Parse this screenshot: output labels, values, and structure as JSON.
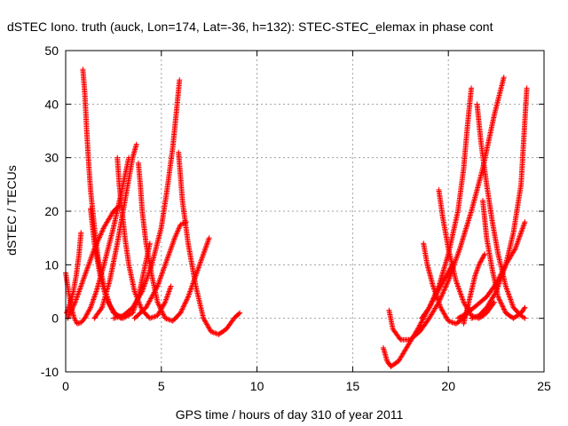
{
  "chart_data": {
    "type": "scatter",
    "title": "dSTEC Iono. truth (auck, Lon=174, Lat=-36, h=132): STEC-STEC_elemax in phase cont",
    "xlabel": "GPS time / hours of day 310 of year 2011",
    "ylabel": "dSTEC  / TECUs",
    "xlim": [
      0,
      25
    ],
    "ylim": [
      -10,
      50
    ],
    "xticks": [
      0,
      5,
      10,
      15,
      20,
      25
    ],
    "yticks": [
      -10,
      0,
      10,
      20,
      30,
      40,
      50
    ],
    "xtick_labels": [
      "0",
      "5",
      "10",
      "15",
      "20",
      "25"
    ],
    "ytick_labels": [
      "-10",
      "0",
      "10",
      "20",
      "30",
      "40",
      "50"
    ],
    "grid": true,
    "legend": "none",
    "marker": "plus",
    "color": "#ff0000",
    "series": [
      {
        "x": [
          0,
          0.15,
          0.3,
          0.45,
          0.6,
          0.8,
          1.0,
          1.3,
          1.6,
          2.0,
          2.5,
          3.0,
          3.3
        ],
        "y": [
          8.5,
          5,
          2,
          0,
          -1,
          -0.8,
          0,
          2,
          5,
          10,
          17,
          25,
          30
        ]
      },
      {
        "x": [
          0.9,
          1.0,
          1.1,
          1.2,
          1.3,
          1.5,
          1.7,
          2.0,
          2.3,
          2.6,
          2.9
        ],
        "y": [
          46.5,
          42,
          35,
          29,
          24,
          17,
          11,
          6,
          2.5,
          0.8,
          0
        ]
      },
      {
        "x": [
          0.8,
          0.7,
          0.55,
          0.4,
          0.25,
          0.1,
          0.05
        ],
        "y": [
          16,
          12,
          8,
          5,
          3,
          1.5,
          1
        ]
      },
      {
        "x": [
          1.3,
          1.5,
          1.8,
          2.1,
          2.5,
          3.0,
          3.5,
          3.8,
          4.1,
          4.4
        ],
        "y": [
          20.5,
          14,
          8,
          4,
          1,
          0,
          1,
          4,
          9,
          14
        ]
      },
      {
        "x": [
          2.7,
          2.8,
          2.95,
          3.1,
          3.3,
          3.6,
          4.0,
          4.4,
          4.8,
          5.2,
          5.5
        ],
        "y": [
          30,
          25,
          20,
          15,
          10,
          5,
          1.5,
          0,
          0.5,
          3,
          6
        ]
      },
      {
        "x": [
          1.5,
          1.9,
          2.3,
          2.7,
          3.0,
          3.3,
          3.5,
          3.7
        ],
        "y": [
          0,
          2,
          7,
          14,
          20,
          26,
          30,
          32.5
        ]
      },
      {
        "x": [
          3.8,
          3.9,
          4.0,
          4.2,
          4.5,
          4.8,
          5.2,
          5.6,
          6.0,
          6.4,
          6.8,
          7.2,
          7.5
        ],
        "y": [
          29,
          25,
          20,
          14,
          8,
          3,
          0,
          -0.5,
          1,
          4,
          8,
          12,
          15
        ]
      },
      {
        "x": [
          2.5,
          3.0,
          3.5,
          4.0,
          4.5,
          5.0,
          5.3,
          5.6,
          5.8,
          5.95
        ],
        "y": [
          0,
          0.5,
          2,
          5,
          10,
          17,
          24,
          32,
          39,
          44.5
        ]
      },
      {
        "x": [
          5.9,
          6.1,
          6.4,
          6.8,
          7.2,
          7.6,
          8.0,
          8.4,
          8.8,
          9.1
        ],
        "y": [
          31,
          22,
          14,
          6,
          0,
          -2.5,
          -3,
          -2,
          0,
          1
        ]
      },
      {
        "x": [
          3.6,
          4.2,
          4.8,
          5.3,
          5.7,
          6.0,
          6.3
        ],
        "y": [
          0,
          2,
          6,
          11,
          15,
          17.5,
          18
        ]
      },
      {
        "x": [
          0.1,
          0.5,
          1.0,
          1.5,
          2.0,
          2.5,
          2.8
        ],
        "y": [
          0,
          3,
          8,
          13,
          17,
          20,
          21
        ]
      },
      {
        "x": [
          16.6,
          16.8,
          17.0,
          17.4,
          17.9,
          18.4,
          19.0,
          19.6,
          20.2
        ],
        "y": [
          -5.5,
          -8,
          -9,
          -8,
          -5,
          -2,
          2,
          6,
          10
        ]
      },
      {
        "x": [
          16.9,
          17.1,
          17.5,
          18.0,
          18.5,
          19.0,
          19.5,
          20.0,
          20.6,
          21.2,
          21.8,
          22.4,
          22.9
        ],
        "y": [
          1.5,
          -2,
          -4,
          -4,
          -2.5,
          0,
          3,
          7,
          13,
          20,
          28,
          38,
          45
        ]
      },
      {
        "x": [
          18.7,
          18.9,
          19.2,
          19.6,
          20.0,
          20.4,
          20.8,
          21.1
        ],
        "y": [
          14,
          10,
          6,
          2,
          -0.5,
          -1,
          0,
          2
        ]
      },
      {
        "x": [
          19.5,
          19.7,
          20.0,
          20.4,
          20.8,
          21.2,
          21.6,
          22.0,
          22.4
        ],
        "y": [
          24,
          19,
          13,
          7,
          3,
          0.5,
          0,
          1,
          3
        ]
      },
      {
        "x": [
          18.6,
          19.0,
          19.5,
          20.0,
          20.5,
          20.8,
          21.0,
          21.2
        ],
        "y": [
          0,
          2,
          6,
          12,
          20,
          28,
          36,
          43
        ]
      },
      {
        "x": [
          21.5,
          21.7,
          22.0,
          22.3,
          22.6,
          23.0,
          23.4,
          23.8,
          24.0
        ],
        "y": [
          40,
          33,
          25,
          18,
          12,
          6,
          2,
          0.5,
          0
        ]
      },
      {
        "x": [
          21.8,
          22.0,
          22.3,
          22.6,
          23.0,
          23.4,
          23.8,
          24.0
        ],
        "y": [
          22,
          15,
          9,
          4,
          1,
          0,
          1,
          2
        ]
      },
      {
        "x": [
          21.2,
          21.6,
          22.0,
          22.5,
          23.0,
          23.4,
          23.8,
          24.1
        ],
        "y": [
          0,
          0.5,
          2,
          5,
          10,
          16,
          25,
          43
        ]
      },
      {
        "x": [
          20.5,
          21.0,
          21.5,
          22.0,
          22.5,
          23.0,
          23.5,
          24.0
        ],
        "y": [
          0,
          1,
          2.5,
          4,
          6.5,
          10,
          13,
          18
        ]
      },
      {
        "x": [
          20.8,
          21.0,
          21.2,
          21.4,
          21.6,
          21.9
        ],
        "y": [
          -1,
          2,
          5,
          8,
          10,
          12
        ]
      }
    ]
  }
}
